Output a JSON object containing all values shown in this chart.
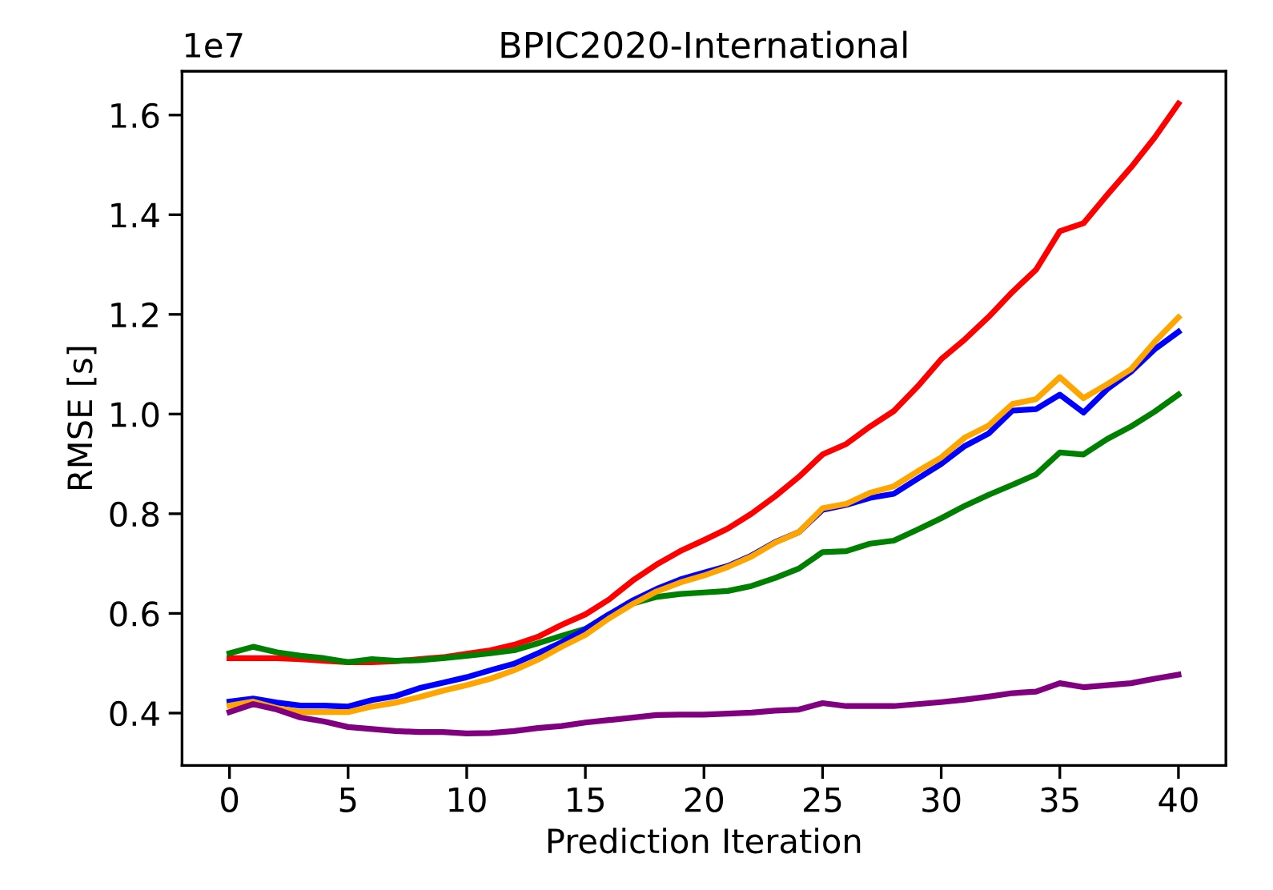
{
  "chart_data": {
    "type": "line",
    "title": "BPIC2020-International",
    "xlabel": "Prediction Iteration",
    "ylabel": "RMSE [s]",
    "annotations": [
      "1e7"
    ],
    "x": [
      0,
      1,
      2,
      3,
      4,
      5,
      6,
      7,
      8,
      9,
      10,
      11,
      12,
      13,
      14,
      15,
      16,
      17,
      18,
      19,
      20,
      21,
      22,
      23,
      24,
      25,
      26,
      27,
      28,
      29,
      30,
      31,
      32,
      33,
      34,
      35,
      36,
      37,
      38,
      39,
      40
    ],
    "series": [
      {
        "color": "#ff0000",
        "values": [
          0.51,
          0.51,
          0.51,
          0.508,
          0.505,
          0.502,
          0.502,
          0.504,
          0.508,
          0.512,
          0.519,
          0.526,
          0.537,
          0.553,
          0.577,
          0.598,
          0.628,
          0.666,
          0.698,
          0.725,
          0.747,
          0.77,
          0.8,
          0.835,
          0.874,
          0.919,
          0.94,
          0.975,
          1.006,
          1.055,
          1.11,
          1.15,
          1.195,
          1.245,
          1.29,
          1.367,
          1.383,
          1.44,
          1.495,
          1.555,
          1.623
        ]
      },
      {
        "color": "#008000",
        "values": [
          0.52,
          0.533,
          0.522,
          0.515,
          0.51,
          0.502,
          0.508,
          0.505,
          0.506,
          0.51,
          0.515,
          0.52,
          0.526,
          0.54,
          0.555,
          0.569,
          0.598,
          0.62,
          0.633,
          0.639,
          0.642,
          0.645,
          0.655,
          0.671,
          0.69,
          0.723,
          0.725,
          0.74,
          0.746,
          0.768,
          0.791,
          0.816,
          0.838,
          0.858,
          0.879,
          0.923,
          0.919,
          0.95,
          0.975,
          1.005,
          1.039
        ]
      },
      {
        "color": "#0000ff",
        "values": [
          0.423,
          0.429,
          0.421,
          0.415,
          0.415,
          0.413,
          0.426,
          0.434,
          0.45,
          0.461,
          0.472,
          0.486,
          0.499,
          0.52,
          0.542,
          0.568,
          0.598,
          0.626,
          0.649,
          0.668,
          0.682,
          0.695,
          0.716,
          0.743,
          0.763,
          0.808,
          0.818,
          0.832,
          0.84,
          0.87,
          0.9,
          0.936,
          0.961,
          1.007,
          1.01,
          1.039,
          1.003,
          1.05,
          1.085,
          1.13,
          1.165
        ]
      },
      {
        "color": "#ffa500",
        "values": [
          0.415,
          0.423,
          0.41,
          0.402,
          0.402,
          0.402,
          0.413,
          0.421,
          0.432,
          0.445,
          0.456,
          0.469,
          0.486,
          0.507,
          0.533,
          0.557,
          0.59,
          0.619,
          0.644,
          0.662,
          0.676,
          0.693,
          0.714,
          0.742,
          0.763,
          0.811,
          0.82,
          0.842,
          0.855,
          0.885,
          0.913,
          0.953,
          0.977,
          1.02,
          1.03,
          1.074,
          1.032,
          1.06,
          1.09,
          1.145,
          1.194
        ]
      },
      {
        "color": "#800080",
        "values": [
          0.402,
          0.418,
          0.407,
          0.391,
          0.383,
          0.372,
          0.368,
          0.364,
          0.362,
          0.362,
          0.359,
          0.36,
          0.364,
          0.37,
          0.374,
          0.381,
          0.386,
          0.391,
          0.396,
          0.397,
          0.397,
          0.399,
          0.401,
          0.405,
          0.407,
          0.42,
          0.414,
          0.414,
          0.414,
          0.418,
          0.422,
          0.427,
          0.433,
          0.44,
          0.443,
          0.46,
          0.452,
          0.456,
          0.46,
          0.469,
          0.477
        ]
      }
    ],
    "xlim": [
      -2,
      42
    ],
    "ylim": [
      0.295,
      1.688
    ],
    "xticks": [
      0,
      5,
      10,
      15,
      20,
      25,
      30,
      35,
      40
    ],
    "yticks": [
      {
        "value": 0.4,
        "label": "0.4"
      },
      {
        "value": 0.6,
        "label": "0.6"
      },
      {
        "value": 0.8,
        "label": "0.8"
      },
      {
        "value": 1.0,
        "label": "1.0"
      },
      {
        "value": 1.2,
        "label": "1.2"
      },
      {
        "value": 1.4,
        "label": "1.4"
      },
      {
        "value": 1.6,
        "label": "1.6"
      }
    ],
    "grid": false,
    "marker": "none",
    "line_style": "solid"
  }
}
